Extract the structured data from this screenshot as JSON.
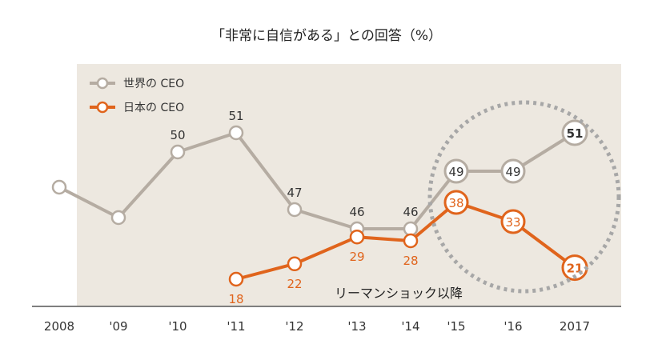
{
  "chart_data": {
    "type": "line",
    "title": "「非常に自信がある」との回答（%）",
    "xlabel": "",
    "ylabel": "",
    "categories": [
      "2008",
      "'09",
      "'10",
      "'11",
      "'12",
      "'13",
      "'14",
      "'15",
      "'16",
      "2017"
    ],
    "ylim": [
      0,
      60
    ],
    "grid": false,
    "legend": "top-left",
    "series": [
      {
        "name": "世界の CEO",
        "color": "#b5aca2",
        "values": [
          null,
          null,
          50,
          51,
          47,
          46,
          46,
          49,
          49,
          51
        ],
        "labels": [
          "",
          "",
          "50",
          "51",
          "47",
          "46",
          "46",
          "49",
          "49",
          "51"
        ]
      },
      {
        "name": "日本の CEO",
        "color": "#e0641c",
        "values": [
          null,
          null,
          null,
          18,
          22,
          29,
          28,
          38,
          33,
          21
        ],
        "labels": [
          "",
          "",
          "",
          "18",
          "22",
          "29",
          "28",
          "38",
          "33",
          "21"
        ]
      }
    ],
    "annotation": "リーマンショック以降",
    "background_color": "#ede8e0",
    "highlight_color": "#a7a7a7"
  }
}
